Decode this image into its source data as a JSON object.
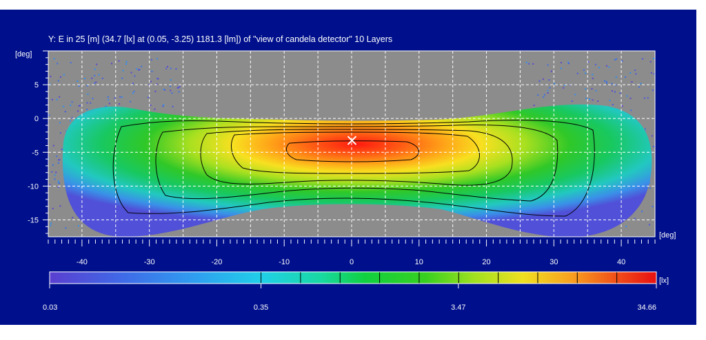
{
  "chart_data": {
    "type": "heatmap",
    "title": "Y: E in 25 [m] (34.7 [lx] at (0.05, -3.25) 1181.3 [lm]) of \"view of candela detector\"  10 Layers",
    "x_unit": "[deg]",
    "y_unit": "[deg]",
    "xlim": [
      -45,
      45
    ],
    "ylim": [
      -17.5,
      10
    ],
    "x_ticks": [
      "-40",
      "-30",
      "-20",
      "-10",
      "0",
      "10",
      "20",
      "30",
      "40"
    ],
    "y_ticks": [
      "5",
      "0",
      "-5",
      "-10",
      "-15"
    ],
    "grid": true,
    "max_marker": {
      "x": 0.05,
      "y": -3.25,
      "value": 34.7
    },
    "colorbar": {
      "unit": "[lx]",
      "scale": "log",
      "min": 0.03,
      "max": 34.66,
      "tick_labels": [
        "0.03",
        "0.35",
        "3.47",
        "34.66"
      ],
      "layers": 10,
      "colors": [
        "#5a3fd0",
        "#3f6ae8",
        "#2f9ef0",
        "#20d0e8",
        "#18d8a0",
        "#10d040",
        "#38d020",
        "#a0e020",
        "#f0e020",
        "#f8a020",
        "#f04818",
        "#e81010"
      ]
    },
    "contour_levels_lx": [
      3.47,
      5.5,
      8.7,
      13.8,
      21.9
    ],
    "background_color": "#00108c",
    "no_data_color": "#8c8c8c"
  }
}
